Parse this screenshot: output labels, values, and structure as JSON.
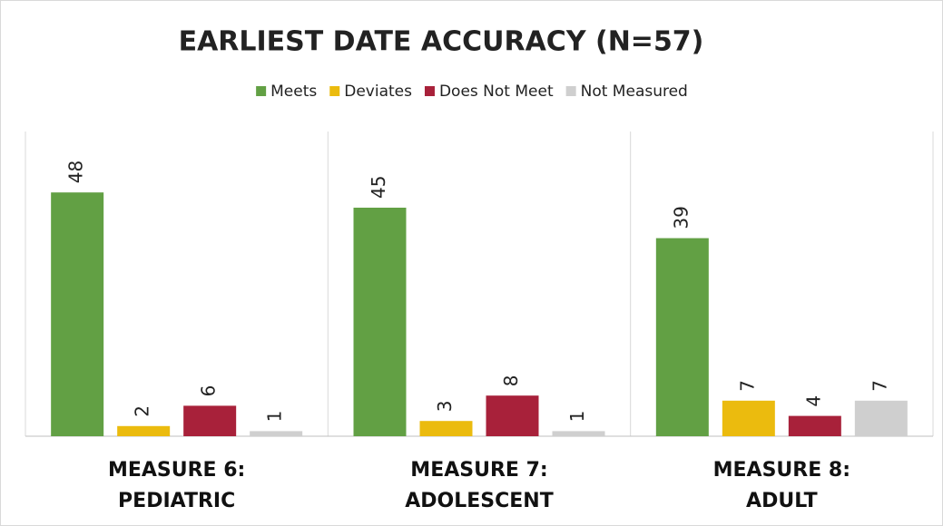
{
  "chart_data": {
    "type": "bar",
    "title": "EARLIEST DATE ACCURACY (N=57)",
    "categories": [
      "MEASURE 6:\nPEDIATRIC",
      "MEASURE 7:\nADOLESCENT",
      "MEASURE 8:\nADULT"
    ],
    "series": [
      {
        "name": "Meets",
        "color": "#62a044",
        "values": [
          48,
          45,
          39
        ]
      },
      {
        "name": "Deviates",
        "color": "#ebbb0e",
        "values": [
          2,
          3,
          7
        ]
      },
      {
        "name": "Does Not Meet",
        "color": "#a8213a",
        "values": [
          6,
          8,
          4
        ]
      },
      {
        "name": "Not Measured",
        "color": "#cfcfcf",
        "values": [
          1,
          1,
          7
        ]
      }
    ],
    "ylim": [
      0,
      60
    ],
    "legend": "top"
  }
}
